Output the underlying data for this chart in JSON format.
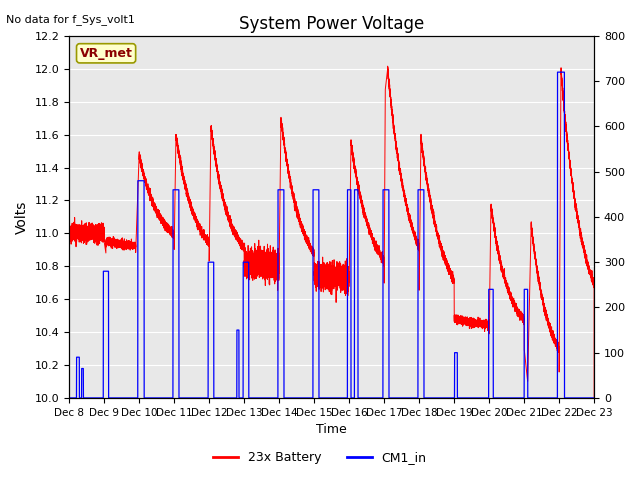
{
  "title": "System Power Voltage",
  "top_left_text": "No data for f_Sys_volt1",
  "ylabel_left": "Volts",
  "xlabel": "Time",
  "ylim_left": [
    10.0,
    12.2
  ],
  "ylim_right": [
    0,
    800
  ],
  "yticks_left": [
    10.0,
    10.2,
    10.4,
    10.6,
    10.8,
    11.0,
    11.2,
    11.4,
    11.6,
    11.8,
    12.0,
    12.2
  ],
  "yticks_right": [
    0,
    100,
    200,
    300,
    400,
    500,
    600,
    700,
    800
  ],
  "xtick_labels": [
    "Dec 8",
    "Dec 9",
    "Dec 10",
    "Dec 11",
    "Dec 12",
    "Dec 13",
    "Dec 14",
    "Dec 15",
    "Dec 16",
    "Dec 17",
    "Dec 18",
    "Dec 19",
    "Dec 20",
    "Dec 21",
    "Dec 22",
    "Dec 23"
  ],
  "background_color": "#e8e8e8",
  "grid_color": "#ffffff",
  "legend_labels": [
    "23x Battery",
    "CM1_in"
  ],
  "annotation_text": "VR_met",
  "annotation_box_color": "#ffffcc",
  "annotation_box_edge": "#999900"
}
